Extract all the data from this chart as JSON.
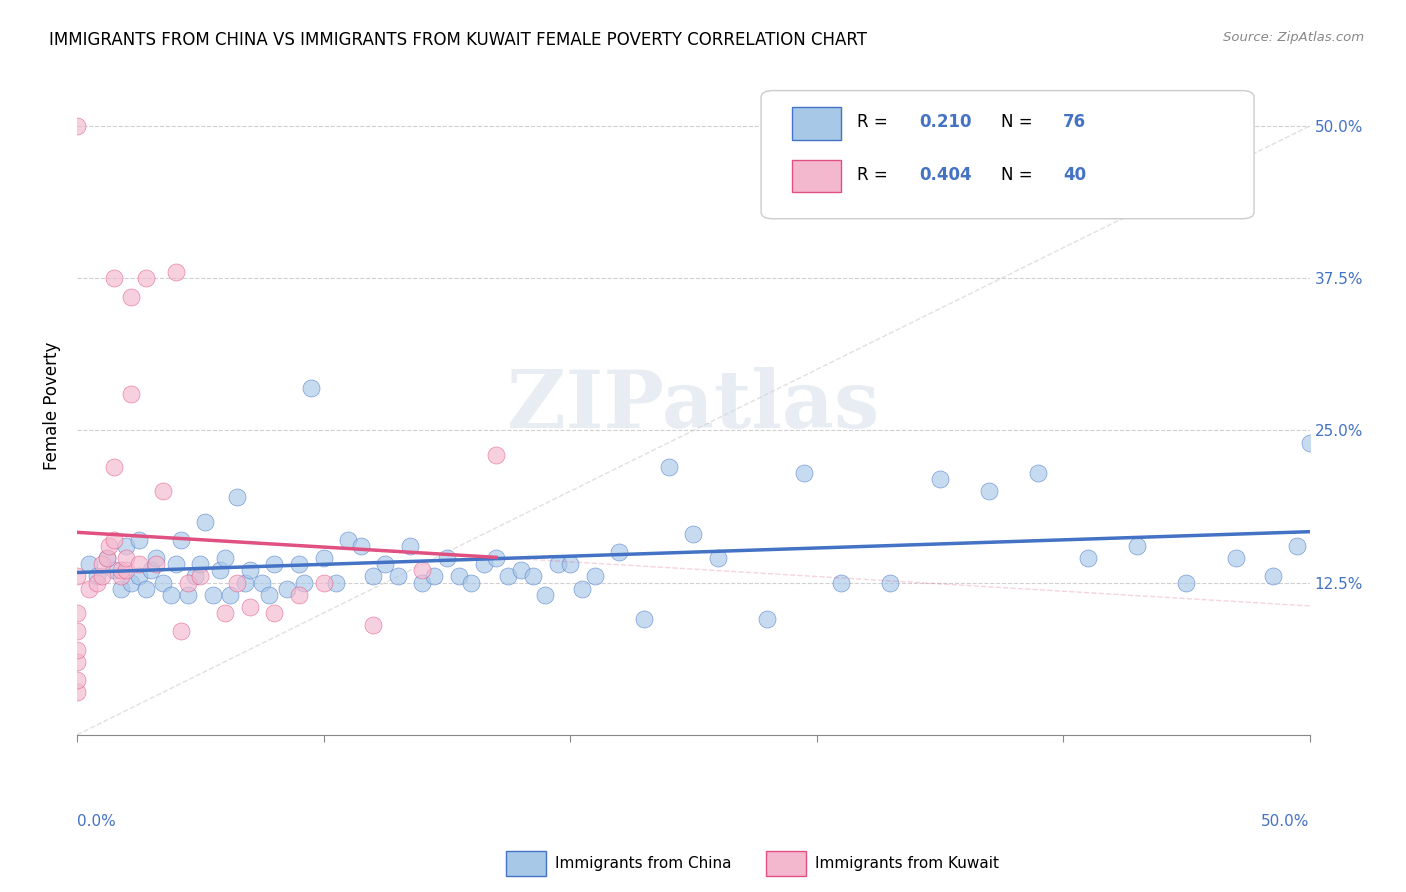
{
  "title": "IMMIGRANTS FROM CHINA VS IMMIGRANTS FROM KUWAIT FEMALE POVERTY CORRELATION CHART",
  "source": "Source: ZipAtlas.com",
  "ylabel": "Female Poverty",
  "ytick_values": [
    0.0,
    0.125,
    0.25,
    0.375,
    0.5
  ],
  "ytick_labels": [
    "",
    "12.5%",
    "25.0%",
    "37.5%",
    "50.0%"
  ],
  "xlim": [
    0.0,
    0.5
  ],
  "ylim": [
    0.0,
    0.54
  ],
  "china_color": "#a8c8e8",
  "china_line_color": "#4472c4",
  "kuwait_color": "#f4b8ce",
  "kuwait_line_color": "#e05080",
  "china_R": "0.210",
  "china_N": "76",
  "kuwait_R": "0.404",
  "kuwait_N": "40",
  "legend_label_china": "Immigrants from China",
  "legend_label_kuwait": "Immigrants from Kuwait",
  "watermark": "ZIPatlas",
  "china_x": [
    0.005,
    0.008,
    0.012,
    0.015,
    0.018,
    0.02,
    0.022,
    0.025,
    0.025,
    0.028,
    0.03,
    0.032,
    0.035,
    0.038,
    0.04,
    0.042,
    0.045,
    0.048,
    0.05,
    0.052,
    0.055,
    0.058,
    0.06,
    0.062,
    0.065,
    0.068,
    0.07,
    0.075,
    0.078,
    0.08,
    0.085,
    0.09,
    0.092,
    0.095,
    0.1,
    0.105,
    0.11,
    0.115,
    0.12,
    0.125,
    0.13,
    0.135,
    0.14,
    0.145,
    0.15,
    0.155,
    0.16,
    0.165,
    0.17,
    0.175,
    0.18,
    0.185,
    0.19,
    0.195,
    0.2,
    0.205,
    0.21,
    0.22,
    0.23,
    0.24,
    0.25,
    0.26,
    0.28,
    0.295,
    0.31,
    0.33,
    0.35,
    0.37,
    0.39,
    0.41,
    0.43,
    0.45,
    0.47,
    0.485,
    0.495,
    0.5
  ],
  "china_y": [
    0.14,
    0.13,
    0.145,
    0.135,
    0.12,
    0.155,
    0.125,
    0.13,
    0.16,
    0.12,
    0.135,
    0.145,
    0.125,
    0.115,
    0.14,
    0.16,
    0.115,
    0.13,
    0.14,
    0.175,
    0.115,
    0.135,
    0.145,
    0.115,
    0.195,
    0.125,
    0.135,
    0.125,
    0.115,
    0.14,
    0.12,
    0.14,
    0.125,
    0.285,
    0.145,
    0.125,
    0.16,
    0.155,
    0.13,
    0.14,
    0.13,
    0.155,
    0.125,
    0.13,
    0.145,
    0.13,
    0.125,
    0.14,
    0.145,
    0.13,
    0.135,
    0.13,
    0.115,
    0.14,
    0.14,
    0.12,
    0.13,
    0.15,
    0.095,
    0.22,
    0.165,
    0.145,
    0.095,
    0.215,
    0.125,
    0.125,
    0.21,
    0.2,
    0.215,
    0.145,
    0.155,
    0.125,
    0.145,
    0.13,
    0.155,
    0.24
  ],
  "kuwait_x": [
    0.0,
    0.0,
    0.0,
    0.0,
    0.0,
    0.0,
    0.0,
    0.0,
    0.005,
    0.008,
    0.01,
    0.01,
    0.012,
    0.013,
    0.015,
    0.015,
    0.015,
    0.018,
    0.018,
    0.02,
    0.02,
    0.022,
    0.022,
    0.025,
    0.028,
    0.032,
    0.035,
    0.04,
    0.042,
    0.045,
    0.05,
    0.06,
    0.065,
    0.07,
    0.08,
    0.09,
    0.1,
    0.12,
    0.14,
    0.17
  ],
  "kuwait_y": [
    0.035,
    0.045,
    0.06,
    0.07,
    0.085,
    0.1,
    0.13,
    0.5,
    0.12,
    0.125,
    0.13,
    0.14,
    0.145,
    0.155,
    0.16,
    0.22,
    0.375,
    0.13,
    0.135,
    0.135,
    0.145,
    0.28,
    0.36,
    0.14,
    0.375,
    0.14,
    0.2,
    0.38,
    0.085,
    0.125,
    0.13,
    0.1,
    0.125,
    0.105,
    0.1,
    0.115,
    0.125,
    0.09,
    0.135,
    0.23
  ]
}
